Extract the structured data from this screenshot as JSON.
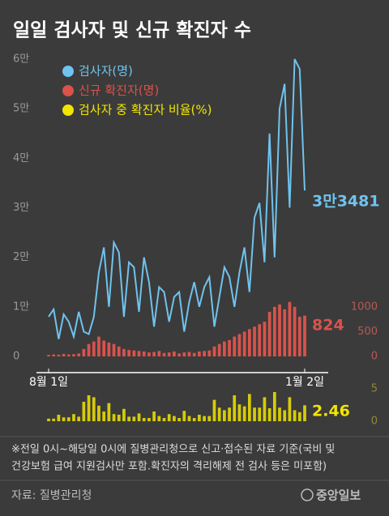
{
  "chart_data": [
    {
      "type": "combo",
      "title": "일일 검사자 및 신규 확진자 수",
      "categories": [
        "8월 1일",
        null,
        null,
        null,
        null,
        null,
        null,
        null,
        null,
        null,
        null,
        null,
        null,
        null,
        null,
        null,
        null,
        null,
        null,
        null,
        null,
        null,
        null,
        null,
        null,
        null,
        null,
        null,
        null,
        null,
        null,
        null,
        null,
        null,
        null,
        null,
        null,
        null,
        null,
        null,
        null,
        null,
        null,
        null,
        null,
        null,
        null,
        null,
        null,
        null,
        null,
        "1월 2일"
      ],
      "ylim": [
        0,
        60000
      ],
      "yticks": [
        0,
        {
          "value": 10000,
          "label": "1만"
        },
        {
          "value": 20000,
          "label": "2만"
        },
        {
          "value": 30000,
          "label": "3만"
        },
        {
          "value": 40000,
          "label": "4만"
        },
        {
          "value": 50000,
          "label": "5만"
        },
        {
          "value": 60000,
          "label": "6만"
        }
      ],
      "y2lim": [
        0,
        6000
      ],
      "y2ticks": [
        0,
        500,
        1000
      ],
      "series": [
        {
          "name": "검사자(명)",
          "type": "line",
          "color": "#6fc3ee",
          "values": [
            8000,
            9500,
            3500,
            8500,
            7000,
            4000,
            9000,
            5000,
            4500,
            8000,
            17000,
            22000,
            10000,
            23000,
            21000,
            8000,
            19000,
            18000,
            9000,
            20000,
            15000,
            6000,
            14000,
            13000,
            7000,
            12000,
            13000,
            5000,
            11000,
            15000,
            10000,
            14000,
            16000,
            6000,
            12000,
            18000,
            16000,
            10000,
            17000,
            22000,
            13000,
            28000,
            31000,
            19000,
            45000,
            20000,
            50000,
            55000,
            30000,
            60000,
            58000,
            33481
          ],
          "value_labels": [
            null,
            null,
            null,
            null,
            null,
            null,
            null,
            null,
            null,
            null,
            null,
            null,
            null,
            null,
            null,
            null,
            null,
            null,
            null,
            null,
            null,
            null,
            null,
            null,
            null,
            null,
            null,
            null,
            null,
            null,
            null,
            null,
            null,
            null,
            null,
            null,
            null,
            null,
            null,
            null,
            null,
            null,
            null,
            null,
            null,
            null,
            null,
            null,
            null,
            null,
            null,
            "3만3481"
          ]
        },
        {
          "name": "신규 확진자(명)",
          "type": "bar",
          "axis": "y2",
          "color": "#d9534c",
          "values": [
            30,
            40,
            35,
            50,
            40,
            45,
            60,
            150,
            250,
            300,
            400,
            320,
            280,
            250,
            200,
            150,
            130,
            120,
            110,
            100,
            80,
            90,
            110,
            70,
            80,
            100,
            60,
            80,
            90,
            70,
            100,
            110,
            120,
            200,
            250,
            300,
            330,
            400,
            450,
            500,
            550,
            600,
            650,
            700,
            900,
            1000,
            1050,
            950,
            1100,
            1000,
            800,
            824
          ]
        }
      ]
    },
    {
      "type": "bar",
      "ylim": [
        0,
        5
      ],
      "yticks": [
        0,
        5
      ],
      "series": [
        {
          "name": "검사자 중 확진자 비율(%)",
          "color": "#f2e600",
          "values": [
            0.4,
            0.4,
            1.0,
            0.6,
            0.6,
            1.1,
            0.7,
            3.0,
            4.0,
            3.7,
            2.4,
            1.5,
            2.8,
            1.1,
            1.0,
            1.9,
            0.7,
            0.7,
            1.2,
            0.5,
            0.5,
            1.5,
            0.8,
            0.5,
            1.1,
            0.8,
            0.5,
            1.6,
            0.8,
            0.5,
            1.0,
            0.8,
            0.8,
            3.3,
            2.1,
            1.7,
            2.1,
            4.0,
            2.6,
            2.3,
            4.2,
            2.1,
            2.1,
            3.7,
            2.0,
            4.5,
            2.1,
            1.7,
            3.7,
            1.7,
            1.4,
            2.46
          ]
        }
      ]
    }
  ],
  "footnote": [
    "※전일 0시~해당일 0시에 질병관리청으로 신고·접수된 자료 기준(국비 및",
    "건강보험 급여 지원검사만 포함.확진자의 격리해제 전 검사 등은 미포함)"
  ],
  "source": "자료: 질병관리청",
  "logo": "중앙일보"
}
